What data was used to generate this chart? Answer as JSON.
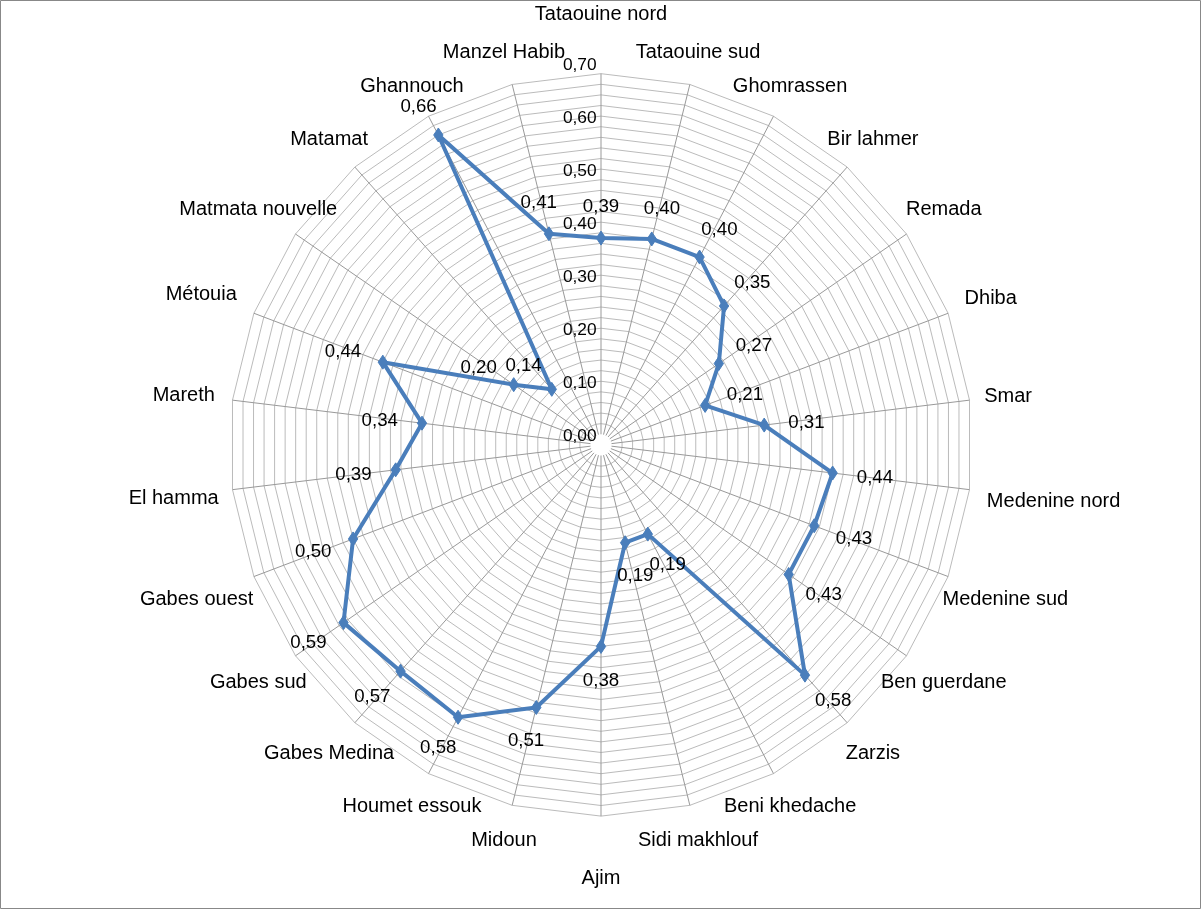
{
  "chart_data": {
    "type": "radar",
    "categories": [
      "Tataouine nord",
      "Tataouine sud",
      "Ghomrassen",
      "Bir lahmer",
      "Remada",
      "Dhiba",
      "Smar",
      "Medenine nord",
      "Medenine sud",
      "Ben guerdane",
      "Zarzis",
      "Beni khedache",
      "Sidi makhlouf",
      "Ajim",
      "Midoun",
      "Houmet essouk",
      "Gabes Medina",
      "Gabes sud",
      "Gabes ouest",
      "El hamma",
      "Mareth",
      "Métouia",
      "Matmata nouvelle",
      "Matamat",
      "Ghannouch",
      "Manzel Habib"
    ],
    "series": [
      {
        "color": "#4a7ebb",
        "values": [
          0.39,
          0.4,
          0.4,
          0.35,
          0.27,
          0.21,
          0.31,
          0.44,
          0.43,
          0.43,
          0.58,
          0.19,
          0.19,
          0.38,
          0.51,
          0.58,
          0.57,
          0.59,
          0.5,
          0.39,
          0.34,
          0.44,
          0.2,
          0.14,
          0.66,
          0.41
        ],
        "value_labels": [
          "0,39",
          "0,40",
          "0,40",
          "0,35",
          "0,27",
          "0,21",
          "0,31",
          "0,44",
          "0,43",
          "0,43",
          "0,58",
          "0,19",
          "0,19",
          "0,38",
          "0,51",
          "0,58",
          "0,57",
          "0,59",
          "0,50",
          "0,39",
          "0,34",
          "0,44",
          "0,20",
          "0,14",
          "0,66",
          "0,41"
        ]
      }
    ],
    "ylim": [
      0,
      0.7
    ],
    "yticks": [
      {
        "value": 0,
        "label": "0,00"
      },
      {
        "value": 0.1,
        "label": "0,10"
      },
      {
        "value": 0.2,
        "label": "0,20"
      },
      {
        "value": 0.3,
        "label": "0,30"
      },
      {
        "value": 0.4,
        "label": "0,40"
      },
      {
        "value": 0.5,
        "label": "0,50"
      },
      {
        "value": 0.6,
        "label": "0,60"
      },
      {
        "value": 0.7,
        "label": "0,70"
      }
    ],
    "grid": true,
    "marker": "diamond",
    "line_style": "solid"
  }
}
